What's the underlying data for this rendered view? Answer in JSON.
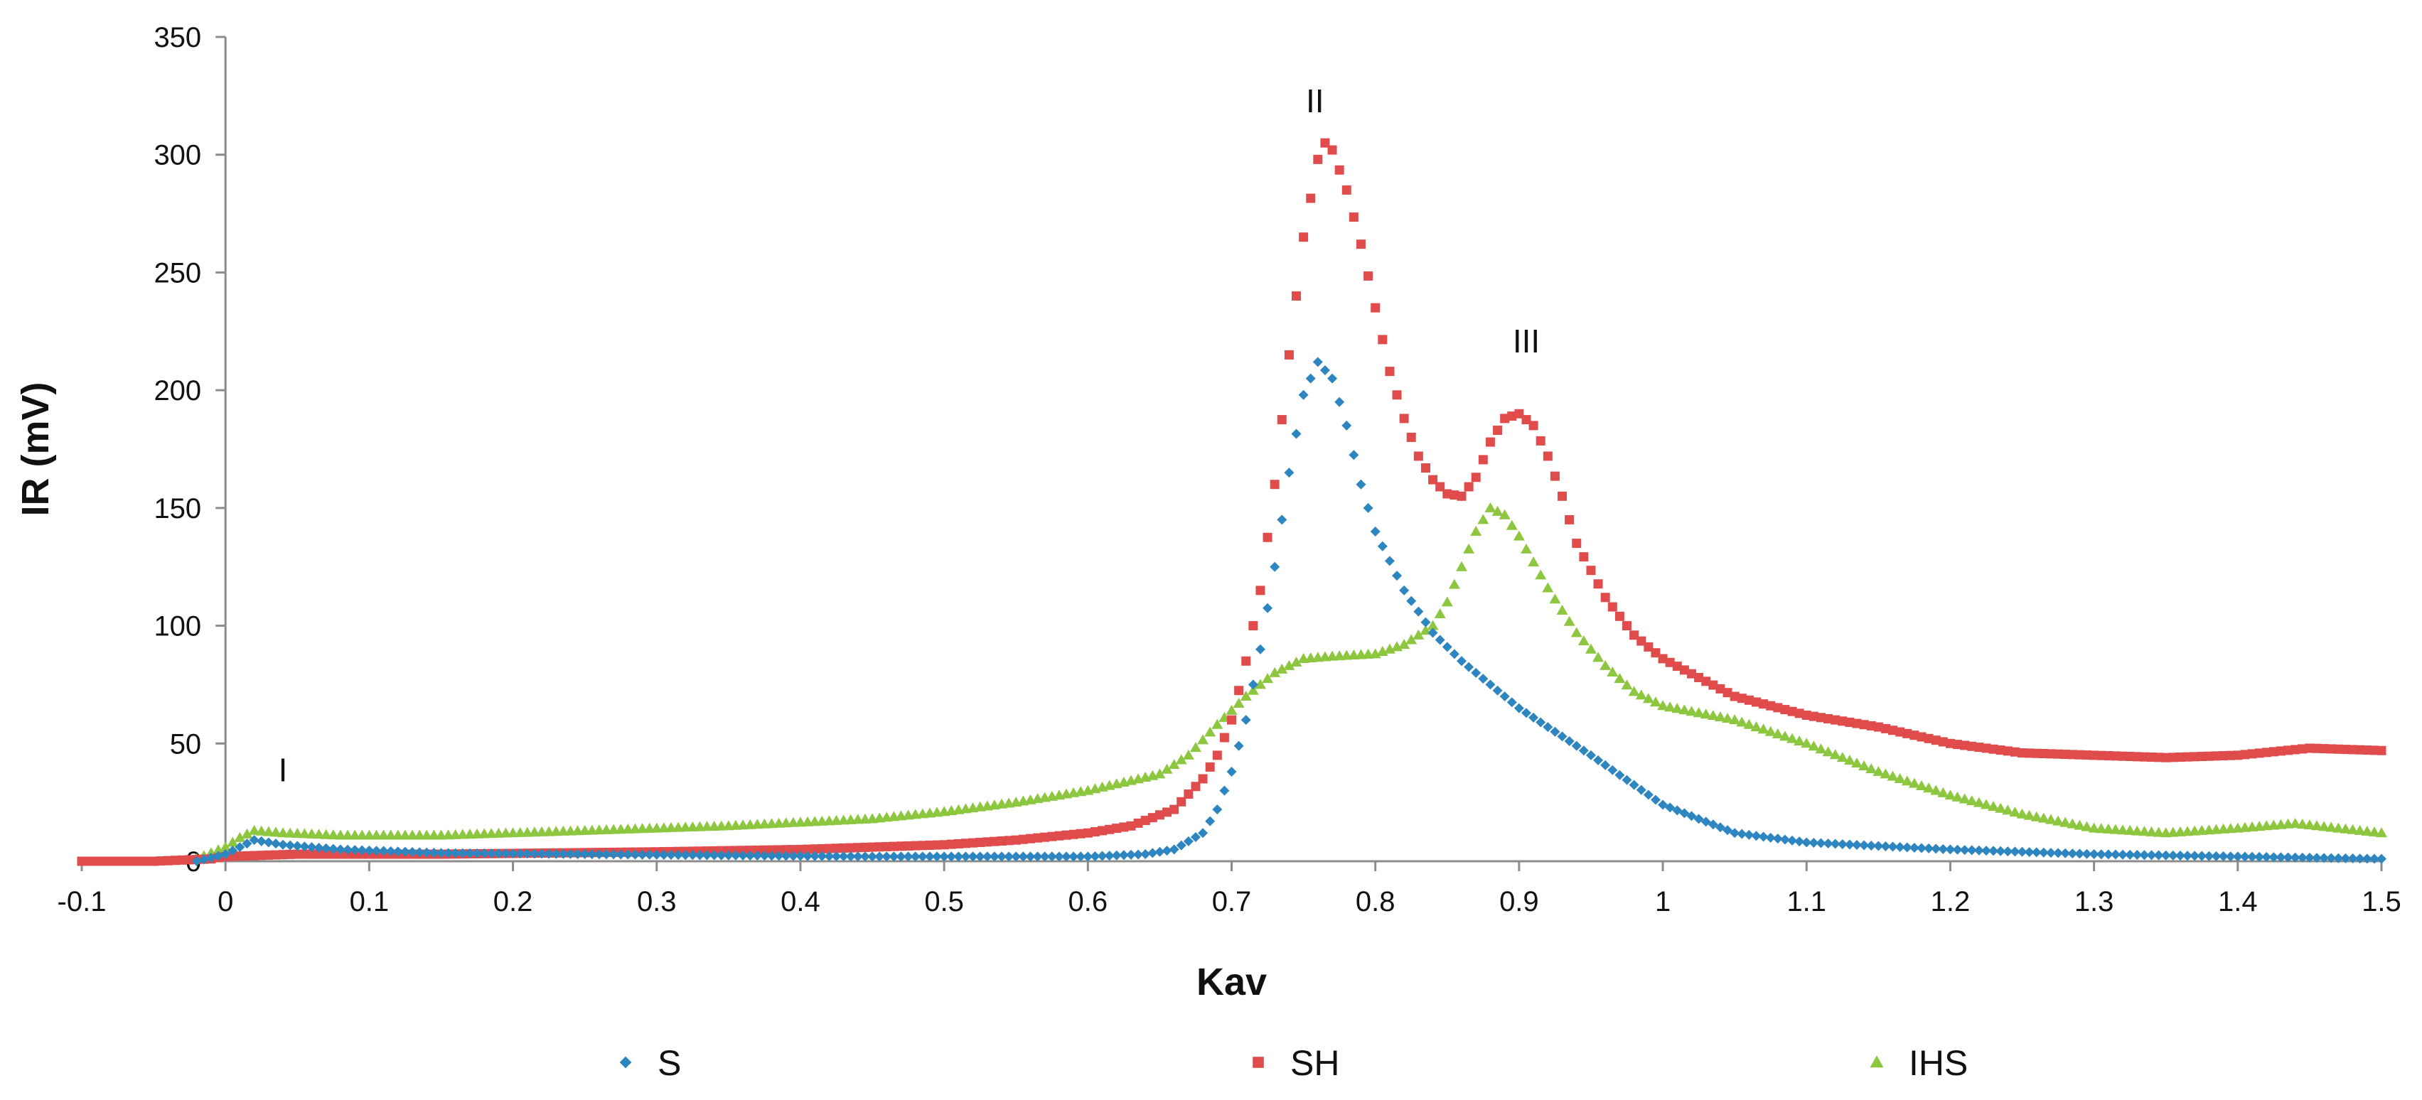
{
  "chart_data": {
    "type": "scatter",
    "title": "",
    "xlabel": "Kav",
    "ylabel": "IR (mV)",
    "xlim": [
      -0.1,
      1.5
    ],
    "ylim": [
      0,
      350
    ],
    "x_ticks": [
      "-0.1",
      "0",
      "0.1",
      "0.2",
      "0.3",
      "0.4",
      "0.5",
      "0.6",
      "0.7",
      "0.8",
      "0.9",
      "1",
      "1.1",
      "1.2",
      "1.3",
      "1.4",
      "1.5"
    ],
    "y_ticks": [
      "0",
      "50",
      "100",
      "150",
      "200",
      "250",
      "300",
      "350"
    ],
    "grid": false,
    "legend_position": "bottom",
    "annotations": [
      {
        "text": "I",
        "x": 0.04,
        "y": 34
      },
      {
        "text": "II",
        "x": 0.758,
        "y": 318
      },
      {
        "text": "III",
        "x": 0.905,
        "y": 216
      }
    ],
    "series": [
      {
        "name": "S",
        "color": "#2E86C1",
        "marker": "diamond",
        "points": [
          [
            -0.02,
            0
          ],
          [
            0.0,
            3
          ],
          [
            0.02,
            9
          ],
          [
            0.04,
            7
          ],
          [
            0.08,
            5
          ],
          [
            0.15,
            3.5
          ],
          [
            0.25,
            3
          ],
          [
            0.35,
            2.5
          ],
          [
            0.45,
            2
          ],
          [
            0.55,
            2
          ],
          [
            0.6,
            2
          ],
          [
            0.64,
            3
          ],
          [
            0.66,
            5
          ],
          [
            0.68,
            12
          ],
          [
            0.69,
            22
          ],
          [
            0.7,
            38
          ],
          [
            0.71,
            60
          ],
          [
            0.72,
            90
          ],
          [
            0.73,
            125
          ],
          [
            0.74,
            165
          ],
          [
            0.75,
            198
          ],
          [
            0.76,
            212
          ],
          [
            0.77,
            205
          ],
          [
            0.78,
            185
          ],
          [
            0.79,
            160
          ],
          [
            0.8,
            140
          ],
          [
            0.82,
            115
          ],
          [
            0.84,
            97
          ],
          [
            0.86,
            85
          ],
          [
            0.9,
            65
          ],
          [
            0.95,
            45
          ],
          [
            1.0,
            24
          ],
          [
            1.05,
            12
          ],
          [
            1.1,
            8
          ],
          [
            1.2,
            5
          ],
          [
            1.3,
            3
          ],
          [
            1.4,
            2
          ],
          [
            1.5,
            1
          ]
        ]
      },
      {
        "name": "SH",
        "color": "#E04B4B",
        "marker": "square",
        "points": [
          [
            -0.1,
            0
          ],
          [
            -0.05,
            0
          ],
          [
            -0.01,
            1
          ],
          [
            0.0,
            2
          ],
          [
            0.05,
            3
          ],
          [
            0.15,
            3
          ],
          [
            0.3,
            4
          ],
          [
            0.4,
            5
          ],
          [
            0.5,
            7
          ],
          [
            0.55,
            9
          ],
          [
            0.6,
            12
          ],
          [
            0.63,
            15
          ],
          [
            0.66,
            22
          ],
          [
            0.68,
            35
          ],
          [
            0.69,
            45
          ],
          [
            0.7,
            60
          ],
          [
            0.71,
            85
          ],
          [
            0.72,
            115
          ],
          [
            0.73,
            160
          ],
          [
            0.74,
            215
          ],
          [
            0.75,
            265
          ],
          [
            0.76,
            298
          ],
          [
            0.765,
            305
          ],
          [
            0.77,
            302
          ],
          [
            0.78,
            285
          ],
          [
            0.79,
            262
          ],
          [
            0.8,
            235
          ],
          [
            0.81,
            208
          ],
          [
            0.82,
            188
          ],
          [
            0.83,
            172
          ],
          [
            0.84,
            162
          ],
          [
            0.85,
            156
          ],
          [
            0.86,
            155
          ],
          [
            0.87,
            163
          ],
          [
            0.88,
            178
          ],
          [
            0.89,
            188
          ],
          [
            0.9,
            190
          ],
          [
            0.91,
            185
          ],
          [
            0.92,
            172
          ],
          [
            0.93,
            155
          ],
          [
            0.94,
            135
          ],
          [
            0.96,
            112
          ],
          [
            0.98,
            96
          ],
          [
            1.0,
            86
          ],
          [
            1.05,
            70
          ],
          [
            1.1,
            62
          ],
          [
            1.15,
            57
          ],
          [
            1.2,
            50
          ],
          [
            1.25,
            46
          ],
          [
            1.3,
            45
          ],
          [
            1.35,
            44
          ],
          [
            1.4,
            45
          ],
          [
            1.45,
            48
          ],
          [
            1.5,
            47
          ]
        ]
      },
      {
        "name": "IHS",
        "color": "#8DC63F",
        "marker": "triangle",
        "points": [
          [
            -0.02,
            1
          ],
          [
            0.0,
            6
          ],
          [
            0.01,
            10
          ],
          [
            0.02,
            13
          ],
          [
            0.04,
            12
          ],
          [
            0.08,
            11
          ],
          [
            0.15,
            11
          ],
          [
            0.25,
            13
          ],
          [
            0.35,
            15
          ],
          [
            0.45,
            18
          ],
          [
            0.5,
            21
          ],
          [
            0.55,
            25
          ],
          [
            0.6,
            30
          ],
          [
            0.65,
            37
          ],
          [
            0.67,
            45
          ],
          [
            0.69,
            58
          ],
          [
            0.71,
            70
          ],
          [
            0.73,
            80
          ],
          [
            0.75,
            86
          ],
          [
            0.77,
            87
          ],
          [
            0.8,
            88
          ],
          [
            0.82,
            92
          ],
          [
            0.84,
            100
          ],
          [
            0.85,
            110
          ],
          [
            0.86,
            125
          ],
          [
            0.87,
            140
          ],
          [
            0.88,
            150
          ],
          [
            0.89,
            147
          ],
          [
            0.9,
            138
          ],
          [
            0.92,
            116
          ],
          [
            0.94,
            97
          ],
          [
            0.96,
            83
          ],
          [
            0.98,
            72
          ],
          [
            1.0,
            66
          ],
          [
            1.05,
            60
          ],
          [
            1.1,
            50
          ],
          [
            1.15,
            38
          ],
          [
            1.2,
            28
          ],
          [
            1.25,
            20
          ],
          [
            1.3,
            14
          ],
          [
            1.35,
            12
          ],
          [
            1.4,
            14
          ],
          [
            1.44,
            16
          ],
          [
            1.47,
            14
          ],
          [
            1.5,
            12
          ]
        ]
      }
    ]
  }
}
